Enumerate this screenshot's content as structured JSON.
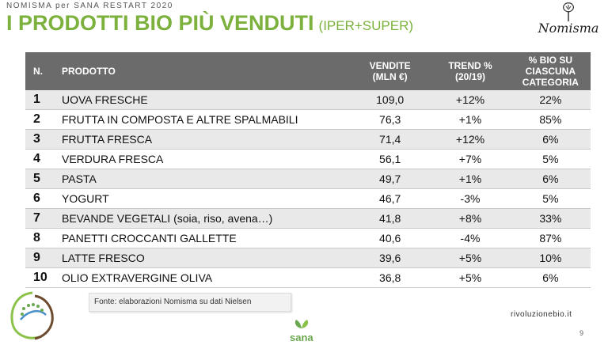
{
  "header": {
    "supertitle": "NOMISMA per SANA RESTART 2020",
    "title": "I PRODOTTI BIO PIÙ VENDUTI",
    "subtitle": "(IPER+SUPER)",
    "logo_text": "Nomisma"
  },
  "table": {
    "columns": {
      "n": "N.",
      "product": "PRODOTTO",
      "sales_1": "VENDITE",
      "sales_2": "(MLN €)",
      "trend_1": "TREND %",
      "trend_2": "(20/19)",
      "bio_1": "% BIO SU",
      "bio_2": "CIASCUNA",
      "bio_3": "CATEGORIA"
    },
    "rows": [
      {
        "n": "1",
        "product": "UOVA FRESCHE",
        "sales": "109,0",
        "trend": "+12%",
        "bio": "22%"
      },
      {
        "n": "2",
        "product": "FRUTTA IN COMPOSTA E ALTRE SPALMABILI",
        "sales": "76,3",
        "trend": "+1%",
        "bio": "85%"
      },
      {
        "n": "3",
        "product": "FRUTTA FRESCA",
        "sales": "71,4",
        "trend": "+12%",
        "bio": "6%"
      },
      {
        "n": "4",
        "product": "VERDURA FRESCA",
        "sales": "56,1",
        "trend": "+7%",
        "bio": "5%"
      },
      {
        "n": "5",
        "product": "PASTA",
        "sales": "49,7",
        "trend": "+1%",
        "bio": "6%"
      },
      {
        "n": "6",
        "product": "YOGURT",
        "sales": "46,7",
        "trend": "-3%",
        "bio": "5%"
      },
      {
        "n": "7",
        "product": "BEVANDE VEGETALI (soia, riso, avena…)",
        "sales": "41,8",
        "trend": "+8%",
        "bio": "33%"
      },
      {
        "n": "8",
        "product": "PANETTI CROCCANTI GALLETTE",
        "sales": "40,6",
        "trend": "-4%",
        "bio": "87%"
      },
      {
        "n": "9",
        "product": "LATTE FRESCO",
        "sales": "39,6",
        "trend": "+5%",
        "bio": "10%"
      },
      {
        "n": "10",
        "product": "OLIO EXTRAVERGINE OLIVA",
        "sales": "36,8",
        "trend": "+5%",
        "bio": "6%"
      }
    ]
  },
  "footer": {
    "source": "Fonte: elaborazioni Nomisma su dati Nielsen",
    "sana_logo": "sana",
    "site": "rivoluzionebio.it",
    "page_number": "9"
  },
  "colors": {
    "title_green": "#7bb13c",
    "header_gray": "#6b6b6b",
    "row_stripe": "#e9e9e9"
  },
  "icons": [
    "nomisma-tree-logo",
    "eu-organic-leaf-logo",
    "sana-logo"
  ]
}
